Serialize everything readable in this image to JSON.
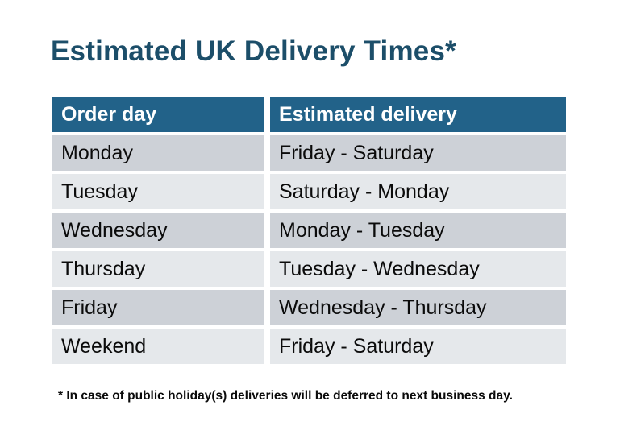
{
  "title": {
    "text": "Estimated UK Delivery Times*",
    "color": "#1C4E69"
  },
  "table": {
    "header": {
      "order_day": "Order day",
      "estimated_delivery": "Estimated delivery",
      "background": "#226289",
      "text_color": "#FFFFFF"
    },
    "row_colors": {
      "odd": "#CDD1D7",
      "even": "#E5E8EB"
    },
    "rows": [
      {
        "order_day": "Monday",
        "estimated_delivery": "Friday - Saturday"
      },
      {
        "order_day": "Tuesday",
        "estimated_delivery": "Saturday - Monday"
      },
      {
        "order_day": "Wednesday",
        "estimated_delivery": "Monday - Tuesday"
      },
      {
        "order_day": "Thursday",
        "estimated_delivery": "Tuesday - Wednesday"
      },
      {
        "order_day": "Friday",
        "estimated_delivery": "Wednesday - Thursday"
      },
      {
        "order_day": "Weekend",
        "estimated_delivery": "Friday - Saturday"
      }
    ]
  },
  "footnote": {
    "text": "* In case of public holiday(s) deliveries will be deferred to next business day."
  }
}
